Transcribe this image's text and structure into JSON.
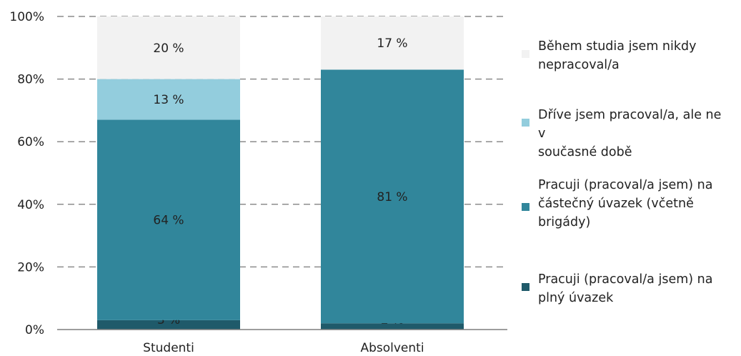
{
  "chart_data": {
    "type": "bar",
    "stacked": true,
    "categories": [
      "Studenti",
      "Absolventi"
    ],
    "series": [
      {
        "name": "Pracuji (pracoval/a jsem) na plný úvazek",
        "values": [
          3,
          2
        ],
        "labels": [
          "3 %",
          "2 %"
        ],
        "color": "#1f5a6a"
      },
      {
        "name": "Pracuji (pracoval/a jsem) na částečný úvazek (včetně brigády)",
        "values": [
          64,
          81
        ],
        "labels": [
          "64 %",
          "81 %"
        ],
        "color": "#31869b"
      },
      {
        "name": "Dříve jsem pracoval/a, ale ne v současné době",
        "values": [
          13,
          0
        ],
        "labels": [
          "13 %",
          ""
        ],
        "color": "#93cddd"
      },
      {
        "name": "Během studia jsem nikdy nepracoval/a",
        "values": [
          20,
          17
        ],
        "labels": [
          "20 %",
          "17 %"
        ],
        "color": "#f2f2f2"
      }
    ],
    "yticks": [
      "0%",
      "20%",
      "40%",
      "60%",
      "80%",
      "100%"
    ],
    "ylim": [
      0,
      100
    ],
    "grid": true,
    "legend_position": "right"
  },
  "legend": {
    "items": [
      {
        "label_lines": [
          "Během studia jsem nikdy",
          "nepracoval/a"
        ],
        "color": "#f2f2f2"
      },
      {
        "label_lines": [
          "Dříve jsem pracoval/a, ale ne v",
          "současné době"
        ],
        "color": "#93cddd"
      },
      {
        "label_lines": [
          "Pracuji (pracoval/a jsem) na",
          "částečný úvazek (včetně",
          "brigády)"
        ],
        "color": "#31869b"
      },
      {
        "label_lines": [
          "Pracuji (pracoval/a jsem) na",
          "plný úvazek"
        ],
        "color": "#1f5a6a"
      }
    ]
  }
}
